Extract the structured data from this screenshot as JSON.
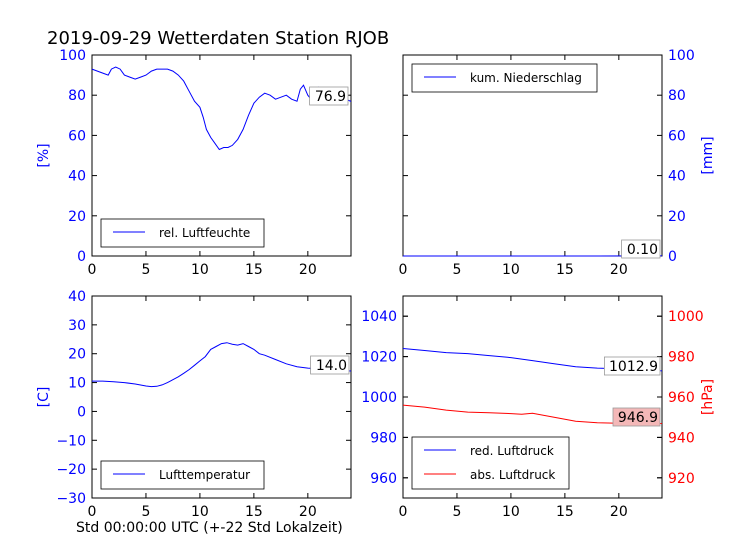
{
  "title": "2019-09-29 Wetterdaten Station RJOB",
  "xlabel": "Std 00:00:00 UTC (+-22 Std Lokalzeit)",
  "colors": {
    "blue": "#0000ff",
    "red": "#ff0000",
    "highlight": "#f4b8b8"
  },
  "chart_data": [
    {
      "id": "humidity",
      "type": "line",
      "ylabel": "[%]",
      "xlim": [
        0,
        24
      ],
      "ylim": [
        0,
        100
      ],
      "xticks": [
        "0",
        "5",
        "10",
        "15",
        "20"
      ],
      "yticks": [
        "0",
        "20",
        "40",
        "60",
        "80",
        "100"
      ],
      "legend": {
        "position": "bottom-left",
        "entries": [
          "rel. Luftfeuchte"
        ]
      },
      "last_value": "76.9",
      "series": [
        {
          "name": "rel. Luftfeuchte",
          "color": "#0000ff",
          "x": [
            0,
            0.5,
            1,
            1.5,
            1.8,
            2.2,
            2.6,
            3,
            3.5,
            4,
            4.5,
            5,
            5.5,
            6,
            6.5,
            7,
            7.5,
            8,
            8.5,
            9,
            9.5,
            10,
            10.3,
            10.6,
            11,
            11.4,
            11.8,
            12.2,
            12.6,
            13,
            13.5,
            14,
            14.5,
            15,
            15.5,
            16,
            16.5,
            17,
            17.5,
            18,
            18.5,
            19,
            19.3,
            19.6,
            20,
            20.3,
            20.6,
            21,
            21.5,
            22,
            22.5,
            23,
            23.5,
            24
          ],
          "y": [
            93,
            92,
            91,
            90,
            93,
            94,
            93,
            90,
            89,
            88,
            89,
            90,
            92,
            93,
            93,
            93,
            92,
            90,
            87,
            82,
            77,
            74,
            69,
            63,
            59,
            56,
            53,
            54,
            54,
            55,
            58,
            63,
            70,
            76,
            79,
            81,
            80,
            78,
            79,
            80,
            78,
            77,
            83,
            85,
            80,
            78,
            83,
            84,
            82,
            81,
            80,
            79,
            78,
            76.9
          ]
        }
      ]
    },
    {
      "id": "precipitation",
      "type": "line",
      "ylabel": "[mm]",
      "xlim": [
        0,
        24
      ],
      "ylim": [
        0,
        100
      ],
      "xticks": [
        "0",
        "5",
        "10",
        "15",
        "20"
      ],
      "yticks": [
        "0",
        "20",
        "40",
        "60",
        "80",
        "100"
      ],
      "legend": {
        "position": "top-left",
        "entries": [
          "kum. Niederschlag"
        ]
      },
      "last_value": "0.10",
      "series": [
        {
          "name": "kum. Niederschlag",
          "color": "#0000ff",
          "x": [
            0,
            6,
            12,
            18,
            24
          ],
          "y": [
            0,
            0,
            0,
            0,
            0.1
          ]
        }
      ]
    },
    {
      "id": "temperature",
      "type": "line",
      "ylabel": "[C]",
      "xlim": [
        0,
        24
      ],
      "ylim": [
        -30,
        40
      ],
      "xticks": [
        "0",
        "5",
        "10",
        "15",
        "20"
      ],
      "yticks": [
        "−30",
        "−20",
        "−10",
        "0",
        "10",
        "20",
        "30",
        "40"
      ],
      "legend": {
        "position": "bottom-left",
        "entries": [
          "Lufttemperatur"
        ]
      },
      "last_value": "14.0",
      "series": [
        {
          "name": "Lufttemperatur",
          "color": "#0000ff",
          "x": [
            0,
            1,
            2,
            3,
            4,
            5,
            5.5,
            6,
            6.5,
            7,
            7.5,
            8,
            8.5,
            9,
            9.5,
            10,
            10.5,
            11,
            11.5,
            12,
            12.5,
            13,
            13.5,
            14,
            14.5,
            15,
            15.5,
            16,
            17,
            18,
            19,
            20,
            21,
            22,
            23,
            24
          ],
          "y": [
            10.5,
            10.5,
            10.3,
            10,
            9.5,
            8.8,
            8.6,
            8.7,
            9.2,
            10,
            11,
            12,
            13.2,
            14.5,
            16,
            17.5,
            19,
            21.5,
            22.5,
            23.5,
            23.8,
            23.3,
            23,
            23.5,
            22.5,
            21.5,
            20,
            19.5,
            18,
            16.5,
            15.5,
            15,
            14.8,
            14.5,
            14.2,
            14
          ]
        }
      ]
    },
    {
      "id": "pressure",
      "type": "line",
      "ylabel": "[hPa]",
      "xlim": [
        0,
        24
      ],
      "ylim_left": [
        950,
        1050
      ],
      "ylim_right": [
        910,
        1010
      ],
      "xticks": [
        "0",
        "5",
        "10",
        "15",
        "20"
      ],
      "yticks_left": [
        "960",
        "980",
        "1000",
        "1020",
        "1040"
      ],
      "yticks_right": [
        "920",
        "940",
        "960",
        "980",
        "1000"
      ],
      "legend": {
        "position": "bottom-left",
        "entries": [
          "red. Luftdruck",
          "abs. Luftdruck"
        ]
      },
      "last_value_red": "1012.9",
      "last_value_abs": "946.9",
      "series": [
        {
          "name": "red. Luftdruck",
          "color": "#0000ff",
          "axis": "left",
          "x": [
            0,
            2,
            4,
            6,
            8,
            10,
            12,
            14,
            16,
            18,
            20,
            22,
            24
          ],
          "y": [
            1024,
            1023,
            1022,
            1021.5,
            1020.5,
            1019.5,
            1018,
            1016.5,
            1015,
            1014.3,
            1014,
            1013.5,
            1012.9
          ]
        },
        {
          "name": "abs. Luftdruck",
          "color": "#ff0000",
          "axis": "right",
          "x": [
            0,
            2,
            4,
            6,
            8,
            10,
            11,
            12,
            14,
            16,
            18,
            20,
            22,
            24
          ],
          "y": [
            956,
            955,
            953.5,
            952.5,
            952.2,
            951.8,
            951.5,
            952,
            950,
            948,
            947.3,
            947,
            947,
            946.9
          ]
        }
      ]
    }
  ]
}
